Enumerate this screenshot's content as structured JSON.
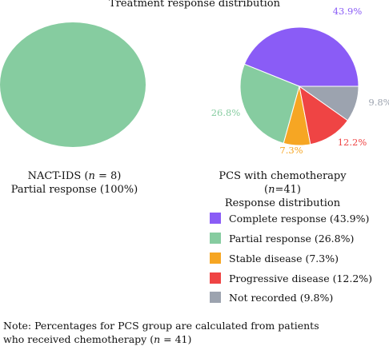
{
  "chart_data": [
    {
      "type": "pie",
      "title": "Treatment response distribution",
      "caption_line1_prefix": "NACT-IDS (",
      "caption_n_var": "n",
      "caption_line1_suffix": " = 8)",
      "caption_line2": "Partial response (100%)",
      "slices": [
        {
          "label": "Partial response",
          "value": 100,
          "color": "#86cca0"
        }
      ]
    },
    {
      "type": "pie",
      "caption_line1_prefix": "PCS with chemotherapy (",
      "caption_n_var": "n",
      "caption_line1_suffix": "=41)",
      "caption_line2": "Response distribution",
      "slices": [
        {
          "label": "Complete response (43.9%)",
          "value": 43.9,
          "data_label": "43.9%",
          "color": "#8a5cf6"
        },
        {
          "label": "Partial response (26.8%)",
          "value": 26.8,
          "data_label": "26.8%",
          "color": "#86cca0"
        },
        {
          "label": "Stable disease (7.3%)",
          "value": 7.3,
          "data_label": "7.3%",
          "color": "#f6a623"
        },
        {
          "label": "Progressive disease (12.2%)",
          "value": 12.2,
          "data_label": "12.2%",
          "color": "#ef4444"
        },
        {
          "label": "Not recorded (9.8%)",
          "value": 9.8,
          "data_label": "9.8%",
          "color": "#9ca3af"
        }
      ],
      "legend_placement": "bottom-right"
    }
  ],
  "note": {
    "line1": "Note: Percentages for PCS group are calculated from patients",
    "line2_prefix": "who received chemotherapy (",
    "n_var": "n",
    "line2_suffix": " = 41)"
  }
}
